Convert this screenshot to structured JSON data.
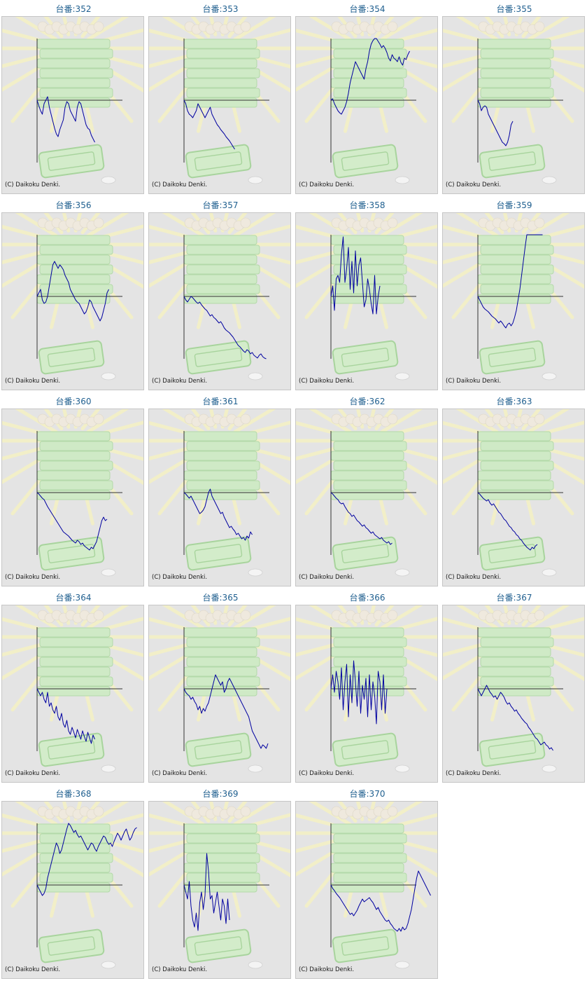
{
  "label_prefix": "台番:",
  "copyright": "(C) Daikoku Denki.",
  "colors": {
    "line": "#0000a0",
    "axis": "#333333",
    "title": "#1f5f8f",
    "panel_bg": "#e4e4e4"
  },
  "chart_data": [
    {
      "type": "line",
      "title": "台番:352",
      "values": [
        0,
        -8,
        -15,
        -20,
        -5,
        0,
        5,
        -10,
        -20,
        -30,
        -40,
        -48,
        -52,
        -42,
        -35,
        -28,
        -10,
        -2,
        -5,
        -15,
        -20,
        -25,
        -30,
        -10,
        -2,
        -5,
        -15,
        -25,
        -35,
        -40,
        -42,
        -50,
        -55,
        -60
      ]
    },
    {
      "type": "line",
      "title": "台番:353",
      "values": [
        0,
        -5,
        -15,
        -20,
        -22,
        -25,
        -20,
        -15,
        -5,
        -10,
        -15,
        -20,
        -25,
        -20,
        -15,
        -10,
        -20,
        -25,
        -30,
        -35,
        -38,
        -42,
        -45,
        -48,
        -52,
        -55,
        -58,
        -62,
        -66,
        -70
      ]
    },
    {
      "type": "line",
      "title": "台番:354",
      "values": [
        0,
        2,
        -5,
        -10,
        -15,
        -18,
        -20,
        -15,
        -10,
        -2,
        10,
        25,
        35,
        45,
        55,
        50,
        45,
        40,
        35,
        30,
        45,
        55,
        70,
        80,
        85,
        90,
        88,
        84,
        80,
        75,
        78,
        74,
        68,
        60,
        56,
        65,
        60,
        58,
        55,
        62,
        54,
        50,
        60,
        58,
        65,
        70
      ]
    },
    {
      "type": "line",
      "title": "台番:355",
      "values": [
        0,
        -5,
        -15,
        -10,
        -8,
        -10,
        -20,
        -25,
        -30,
        -35,
        -40,
        -45,
        -50,
        -55,
        -60,
        -62,
        -65,
        -60,
        -50,
        -35,
        -30
      ]
    },
    {
      "type": "line",
      "title": "台番:356",
      "values": [
        0,
        5,
        10,
        -5,
        -10,
        -8,
        0,
        15,
        30,
        45,
        50,
        45,
        40,
        45,
        42,
        38,
        30,
        25,
        20,
        10,
        5,
        0,
        -5,
        -8,
        -10,
        -15,
        -20,
        -25,
        -22,
        -15,
        -5,
        -8,
        -15,
        -20,
        -25,
        -30,
        -35,
        -30,
        -20,
        -10,
        5,
        10
      ]
    },
    {
      "type": "line",
      "title": "台番:357",
      "values": [
        0,
        -5,
        -8,
        -4,
        0,
        -2,
        -5,
        -8,
        -10,
        -8,
        -12,
        -15,
        -18,
        -20,
        -24,
        -28,
        -26,
        -30,
        -32,
        -35,
        -38,
        -36,
        -40,
        -45,
        -48,
        -50,
        -52,
        -55,
        -58,
        -62,
        -66,
        -70,
        -72,
        -75,
        -78,
        -80,
        -76,
        -78,
        -82,
        -80,
        -84,
        -86,
        -88,
        -84,
        -82,
        -86,
        -88,
        -90
      ]
    },
    {
      "type": "line",
      "title": "台番:358",
      "values": [
        0,
        15,
        -20,
        25,
        30,
        20,
        60,
        85,
        20,
        40,
        70,
        10,
        50,
        5,
        65,
        15,
        45,
        55,
        20,
        -15,
        -5,
        25,
        10,
        -10,
        -25,
        30,
        -25,
        0,
        15
      ]
    },
    {
      "type": "line",
      "title": "台番:359",
      "values": [
        0,
        -5,
        -10,
        -15,
        -18,
        -20,
        -22,
        -25,
        -28,
        -30,
        -32,
        -35,
        -38,
        -35,
        -38,
        -42,
        -45,
        -40,
        -38,
        -42,
        -38,
        -30,
        -20,
        -5,
        10,
        30,
        50,
        70,
        90,
        110,
        130,
        150,
        170,
        180,
        175,
        170,
        172,
        168
      ]
    },
    {
      "type": "line",
      "title": "台番:360",
      "values": [
        0,
        -2,
        -5,
        -8,
        -10,
        -15,
        -20,
        -24,
        -28,
        -32,
        -36,
        -40,
        -44,
        -48,
        -52,
        -56,
        -58,
        -60,
        -62,
        -65,
        -68,
        -70,
        -72,
        -68,
        -70,
        -74,
        -72,
        -76,
        -78,
        -80,
        -82,
        -78,
        -80,
        -75,
        -70,
        -60,
        -50,
        -40,
        -35,
        -40,
        -38
      ]
    },
    {
      "type": "line",
      "title": "台番:361",
      "values": [
        0,
        -2,
        -5,
        -8,
        -5,
        -10,
        -15,
        -20,
        -25,
        -30,
        -28,
        -25,
        -20,
        -10,
        0,
        5,
        -5,
        -10,
        -15,
        -20,
        -25,
        -30,
        -28,
        -35,
        -40,
        -45,
        -50,
        -48,
        -52,
        -55,
        -60,
        -58,
        -62,
        -66,
        -64,
        -68,
        -62,
        -65,
        -56,
        -60
      ]
    },
    {
      "type": "line",
      "title": "台番:362",
      "values": [
        0,
        -2,
        -5,
        -8,
        -10,
        -14,
        -16,
        -15,
        -20,
        -24,
        -28,
        -30,
        -34,
        -32,
        -36,
        -40,
        -42,
        -45,
        -48,
        -46,
        -50,
        -52,
        -55,
        -58,
        -56,
        -60,
        -62,
        -64,
        -66,
        -64,
        -68,
        -70,
        -72,
        -70,
        -74,
        -72
      ]
    },
    {
      "type": "line",
      "title": "台番:363",
      "values": [
        0,
        -2,
        -5,
        -8,
        -10,
        -12,
        -10,
        -15,
        -18,
        -16,
        -20,
        -24,
        -28,
        -30,
        -34,
        -38,
        -40,
        -44,
        -48,
        -50,
        -54,
        -56,
        -60,
        -62,
        -66,
        -68,
        -72,
        -75,
        -78,
        -80,
        -82,
        -78,
        -80,
        -76,
        -74
      ]
    },
    {
      "type": "line",
      "title": "台番:364",
      "values": [
        0,
        -5,
        -10,
        -5,
        -15,
        -20,
        -5,
        -25,
        -20,
        -30,
        -35,
        -25,
        -40,
        -45,
        -35,
        -50,
        -55,
        -45,
        -60,
        -65,
        -55,
        -62,
        -70,
        -58,
        -65,
        -72,
        -60,
        -68,
        -75,
        -62,
        -70,
        -78,
        -66,
        -72
      ]
    },
    {
      "type": "line",
      "title": "台番:365",
      "values": [
        0,
        -5,
        -8,
        -10,
        -15,
        -12,
        -18,
        -22,
        -30,
        -25,
        -35,
        -28,
        -32,
        -25,
        -20,
        -10,
        0,
        10,
        20,
        15,
        10,
        5,
        10,
        -5,
        0,
        10,
        15,
        10,
        5,
        0,
        -5,
        -10,
        -15,
        -20,
        -25,
        -30,
        -35,
        -40,
        -50,
        -60,
        -65,
        -70,
        -75,
        -80,
        -85,
        -80,
        -82,
        -85,
        -78
      ]
    },
    {
      "type": "line",
      "title": "台番:366",
      "values": [
        0,
        20,
        -5,
        25,
        10,
        -15,
        30,
        -30,
        10,
        35,
        -40,
        20,
        -20,
        40,
        10,
        -25,
        25,
        -35,
        5,
        -15,
        15,
        -40,
        20,
        -30,
        10,
        -10,
        -50,
        25,
        10,
        -30,
        20,
        -35,
        0
      ]
    },
    {
      "type": "line",
      "title": "台番:367",
      "values": [
        0,
        -5,
        -10,
        -5,
        0,
        5,
        0,
        -5,
        -8,
        -12,
        -10,
        -15,
        -10,
        -5,
        -8,
        -12,
        -18,
        -22,
        -20,
        -25,
        -28,
        -32,
        -30,
        -35,
        -38,
        -42,
        -45,
        -48,
        -50,
        -55,
        -58,
        -62,
        -66,
        -70,
        -72,
        -76,
        -80,
        -78,
        -76,
        -80,
        -82,
        -86,
        -84,
        -88
      ]
    },
    {
      "type": "line",
      "title": "台番:368",
      "values": [
        0,
        -5,
        -10,
        -15,
        -12,
        -5,
        10,
        20,
        30,
        40,
        50,
        60,
        55,
        45,
        50,
        60,
        70,
        80,
        90,
        85,
        80,
        75,
        78,
        72,
        68,
        70,
        65,
        60,
        55,
        50,
        55,
        60,
        58,
        52,
        48,
        55,
        60,
        65,
        70,
        68,
        62,
        58,
        60,
        55,
        62,
        68,
        74,
        70,
        64,
        70,
        76,
        80,
        72,
        64,
        68,
        75,
        80,
        82
      ]
    },
    {
      "type": "line",
      "title": "台番:369",
      "values": [
        0,
        -10,
        -20,
        5,
        -30,
        -50,
        -60,
        -40,
        -65,
        -25,
        -10,
        -35,
        -15,
        45,
        20,
        -20,
        -15,
        -40,
        -25,
        -10,
        -30,
        -50,
        -20,
        -30,
        -55,
        -20,
        -50
      ]
    },
    {
      "type": "line",
      "title": "台番:370",
      "values": [
        0,
        -5,
        -8,
        -12,
        -15,
        -18,
        -22,
        -26,
        -30,
        -34,
        -38,
        -42,
        -40,
        -44,
        -40,
        -36,
        -30,
        -25,
        -20,
        -24,
        -22,
        -20,
        -18,
        -22,
        -25,
        -30,
        -35,
        -32,
        -38,
        -42,
        -46,
        -50,
        -52,
        -50,
        -55,
        -58,
        -62,
        -64,
        -66,
        -62,
        -66,
        -60,
        -64,
        -62,
        -55,
        -45,
        -35,
        -20,
        -5,
        10,
        20,
        15,
        10,
        5,
        0,
        -5,
        -10,
        -15
      ]
    }
  ]
}
